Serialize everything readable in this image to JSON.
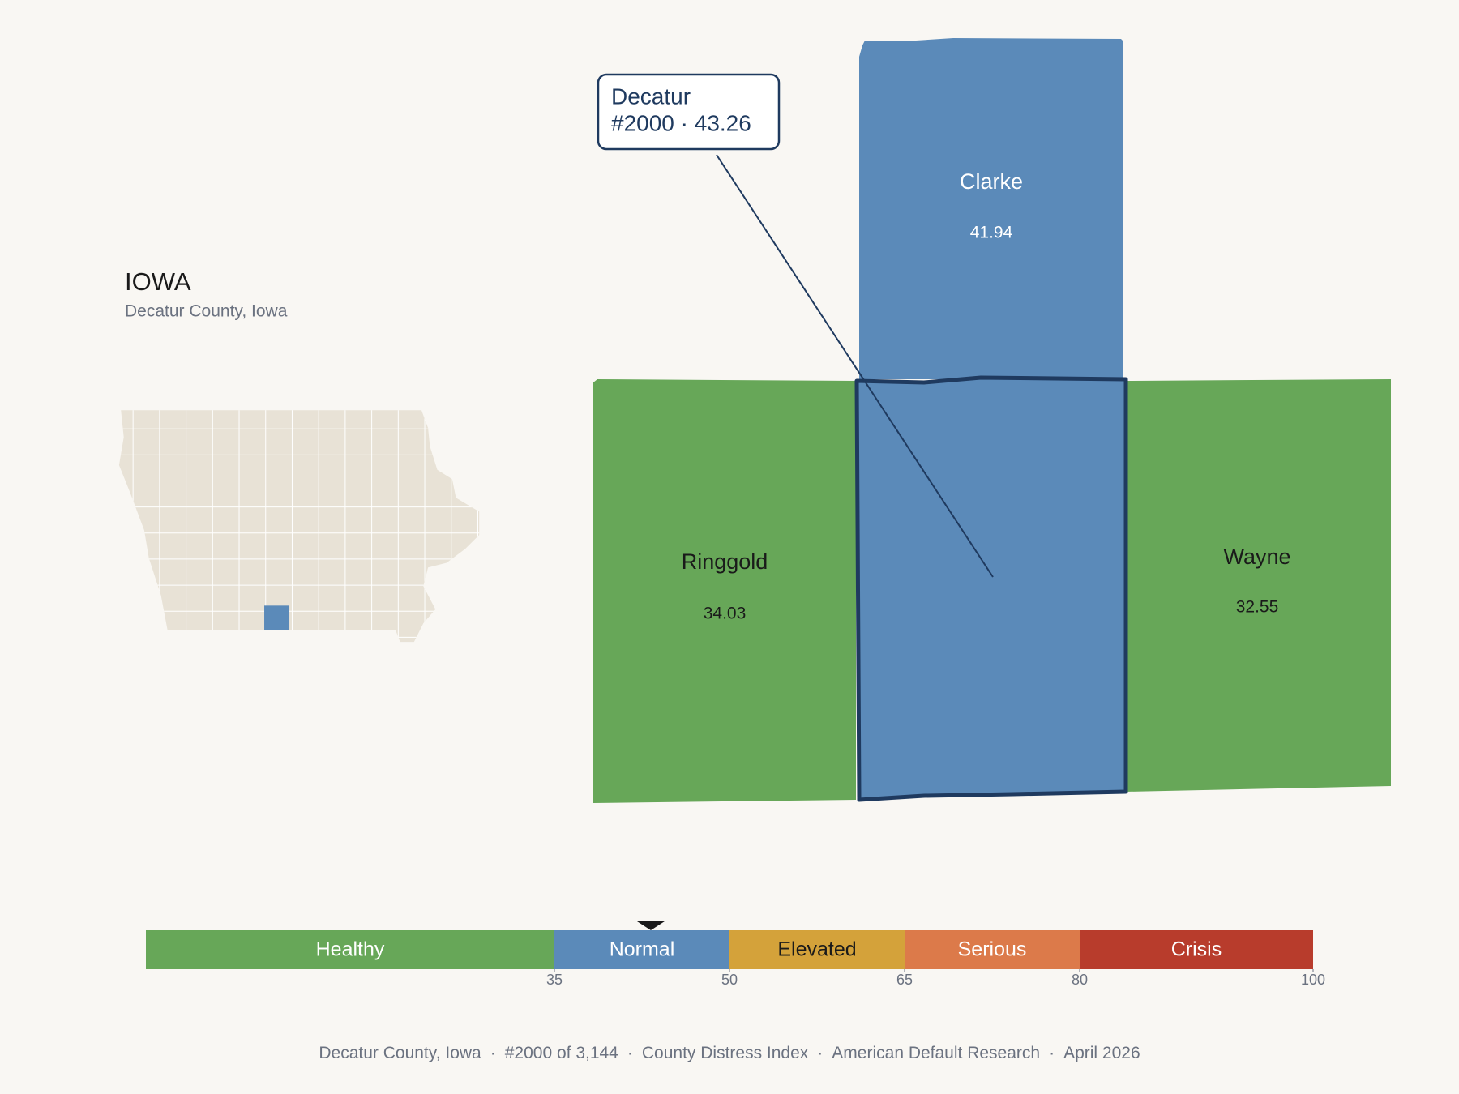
{
  "header": {
    "state": "IOWA",
    "subtitle": "Decatur County, Iowa"
  },
  "counties": [
    {
      "name": "Clarke",
      "value": 41.94
    },
    {
      "name": "Ringgold",
      "value": 34.03
    },
    {
      "name": "Wayne",
      "value": 32.55
    }
  ],
  "selected": {
    "name": "Decatur",
    "value": 43.26,
    "tooltip": {
      "title": "Decatur",
      "line": "#2000 · 43.26"
    }
  },
  "scale": {
    "lim": [
      0,
      100
    ],
    "bands": [
      {
        "name": "Healthy",
        "from": 0,
        "to": 35,
        "color": "#67a758"
      },
      {
        "name": "Normal",
        "from": 35,
        "to": 50,
        "color": "#5b8ab9"
      },
      {
        "name": "Elevated",
        "from": 50,
        "to": 65,
        "color": "#d4a23a"
      },
      {
        "name": "Serious",
        "from": 65,
        "to": 80,
        "color": "#dc7a4a"
      },
      {
        "name": "Crisis",
        "from": 80,
        "to": 100,
        "color": "#b83c2c"
      }
    ],
    "ticks": [
      35,
      50,
      65,
      80,
      100
    ],
    "marker": 43.26
  },
  "footer": {
    "separator": "·",
    "parts": [
      "Decatur County, Iowa",
      "#2000 of 3,144",
      "County Distress Index",
      "American Default Research",
      "April 2026"
    ]
  }
}
